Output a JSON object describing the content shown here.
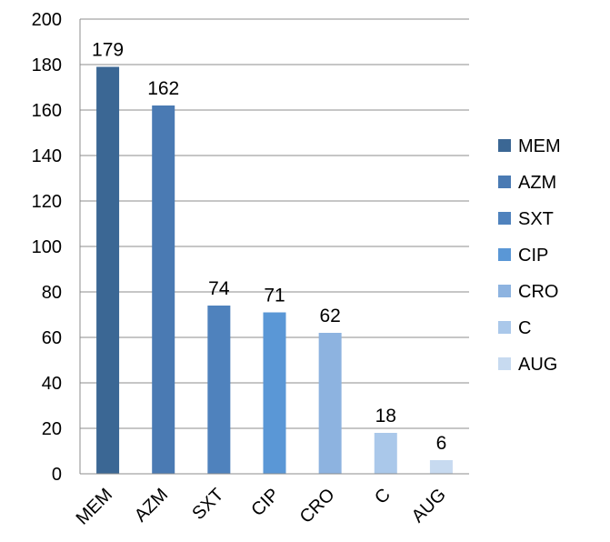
{
  "chart_data": {
    "type": "bar",
    "categories": [
      "MEM",
      "AZM",
      "SXT",
      "CIP",
      "CRO",
      "C",
      "AUG"
    ],
    "values": [
      179,
      162,
      74,
      71,
      62,
      18,
      6
    ],
    "data_labels": [
      "179",
      "162",
      "74",
      "71",
      "62",
      "18",
      "6"
    ],
    "colors": [
      "#3b6794",
      "#4a7ab3",
      "#4f82bd",
      "#5a97d6",
      "#8db3e0",
      "#aac8ea",
      "#c7daf0"
    ],
    "title": "",
    "xlabel": "",
    "ylabel": "",
    "ylim": [
      0,
      200
    ],
    "yticks": [
      "0",
      "20",
      "40",
      "60",
      "80",
      "100",
      "120",
      "140",
      "160",
      "180",
      "200"
    ],
    "grid": true,
    "legend": {
      "placement": "right",
      "entries": [
        "MEM",
        "AZM",
        "SXT",
        "CIP",
        "CRO",
        "C",
        "AUG"
      ]
    }
  }
}
